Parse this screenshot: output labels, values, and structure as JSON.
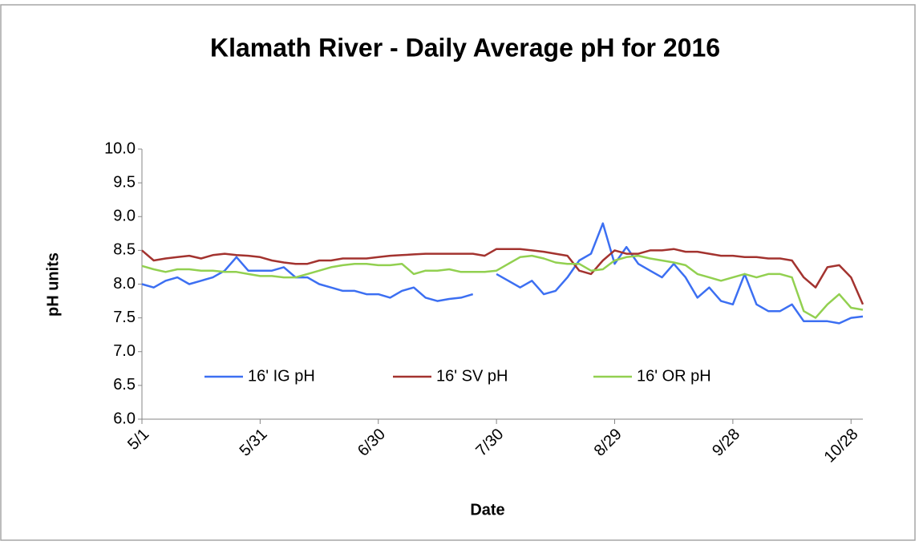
{
  "chart_data": {
    "type": "line",
    "title": "Klamath River - Daily Average pH for 2016",
    "x_label": "Date",
    "y_label": "pH units",
    "x": [
      "5/1",
      "5/4",
      "5/7",
      "5/10",
      "5/13",
      "5/16",
      "5/19",
      "5/22",
      "5/25",
      "5/28",
      "5/31",
      "6/3",
      "6/6",
      "6/9",
      "6/12",
      "6/15",
      "6/18",
      "6/21",
      "6/24",
      "6/27",
      "6/30",
      "7/3",
      "7/6",
      "7/9",
      "7/12",
      "7/15",
      "7/18",
      "7/21",
      "7/24",
      "7/27",
      "7/30",
      "8/2",
      "8/5",
      "8/8",
      "8/11",
      "8/14",
      "8/17",
      "8/20",
      "8/23",
      "8/26",
      "8/29",
      "9/1",
      "9/4",
      "9/7",
      "9/10",
      "9/13",
      "9/16",
      "9/19",
      "9/22",
      "9/25",
      "9/28",
      "10/1",
      "10/4",
      "10/7",
      "10/10",
      "10/13",
      "10/16",
      "10/19",
      "10/22",
      "10/25",
      "10/28",
      "10/31"
    ],
    "xticks": [
      "5/1",
      "5/31",
      "6/30",
      "7/30",
      "8/29",
      "9/28",
      "10/28"
    ],
    "ylim": [
      6.0,
      10.0
    ],
    "yticks": [
      {
        "value": 6,
        "label": "6.0"
      },
      {
        "value": 6.5,
        "label": "6.5"
      },
      {
        "value": 7,
        "label": "7.0"
      },
      {
        "value": 7.5,
        "label": "7.5"
      },
      {
        "value": 8,
        "label": "8.0"
      },
      {
        "value": 8.5,
        "label": "8.5"
      },
      {
        "value": 9,
        "label": "9.0"
      },
      {
        "value": 9.5,
        "label": "9.5"
      },
      {
        "value": 10,
        "label": "10.0"
      }
    ],
    "grid": false,
    "legend": "bottom",
    "series": [
      {
        "name": "16' IG pH",
        "color": "#3c6ff2",
        "values": [
          8.0,
          7.95,
          8.05,
          8.1,
          8.0,
          8.05,
          8.1,
          8.2,
          8.4,
          8.2,
          8.2,
          8.2,
          8.25,
          8.1,
          8.1,
          8.0,
          7.95,
          7.9,
          7.9,
          7.85,
          7.85,
          7.8,
          7.9,
          7.95,
          7.8,
          7.75,
          7.78,
          7.8,
          7.85,
          null,
          8.15,
          8.05,
          7.95,
          8.05,
          7.85,
          7.9,
          8.1,
          8.35,
          8.45,
          8.9,
          8.3,
          8.55,
          8.3,
          8.2,
          8.1,
          8.3,
          8.1,
          7.8,
          7.95,
          7.75,
          7.7,
          8.15,
          7.7,
          7.6,
          7.6,
          7.7,
          7.45,
          7.45,
          7.45,
          7.42,
          7.5,
          7.52
        ]
      },
      {
        "name": "16' SV pH",
        "color": "#a3332f",
        "values": [
          8.5,
          8.35,
          8.38,
          8.4,
          8.42,
          8.38,
          8.43,
          8.45,
          8.43,
          8.42,
          8.4,
          8.35,
          8.32,
          8.3,
          8.3,
          8.35,
          8.35,
          8.38,
          8.38,
          8.38,
          8.4,
          8.42,
          8.43,
          8.44,
          8.45,
          8.45,
          8.45,
          8.45,
          8.45,
          8.42,
          8.52,
          8.52,
          8.52,
          8.5,
          8.48,
          8.45,
          8.42,
          8.2,
          8.15,
          8.35,
          8.5,
          8.45,
          8.45,
          8.5,
          8.5,
          8.52,
          8.48,
          8.48,
          8.45,
          8.42,
          8.42,
          8.4,
          8.4,
          8.38,
          8.38,
          8.35,
          8.1,
          7.95,
          8.25,
          8.28,
          8.1,
          7.7
        ]
      },
      {
        "name": "16' OR pH",
        "color": "#92d050",
        "values": [
          8.27,
          8.22,
          8.18,
          8.22,
          8.22,
          8.2,
          8.2,
          8.18,
          8.18,
          8.15,
          8.12,
          8.12,
          8.1,
          8.1,
          8.15,
          8.2,
          8.25,
          8.28,
          8.3,
          8.3,
          8.28,
          8.28,
          8.3,
          8.15,
          8.2,
          8.2,
          8.22,
          8.18,
          8.18,
          8.18,
          8.2,
          8.3,
          8.4,
          8.42,
          8.38,
          8.32,
          8.3,
          8.3,
          8.2,
          8.22,
          8.35,
          8.4,
          8.42,
          8.38,
          8.35,
          8.32,
          8.28,
          8.15,
          8.1,
          8.05,
          8.1,
          8.15,
          8.1,
          8.15,
          8.15,
          8.1,
          7.6,
          7.5,
          7.7,
          7.85,
          7.65,
          7.62
        ]
      }
    ]
  }
}
